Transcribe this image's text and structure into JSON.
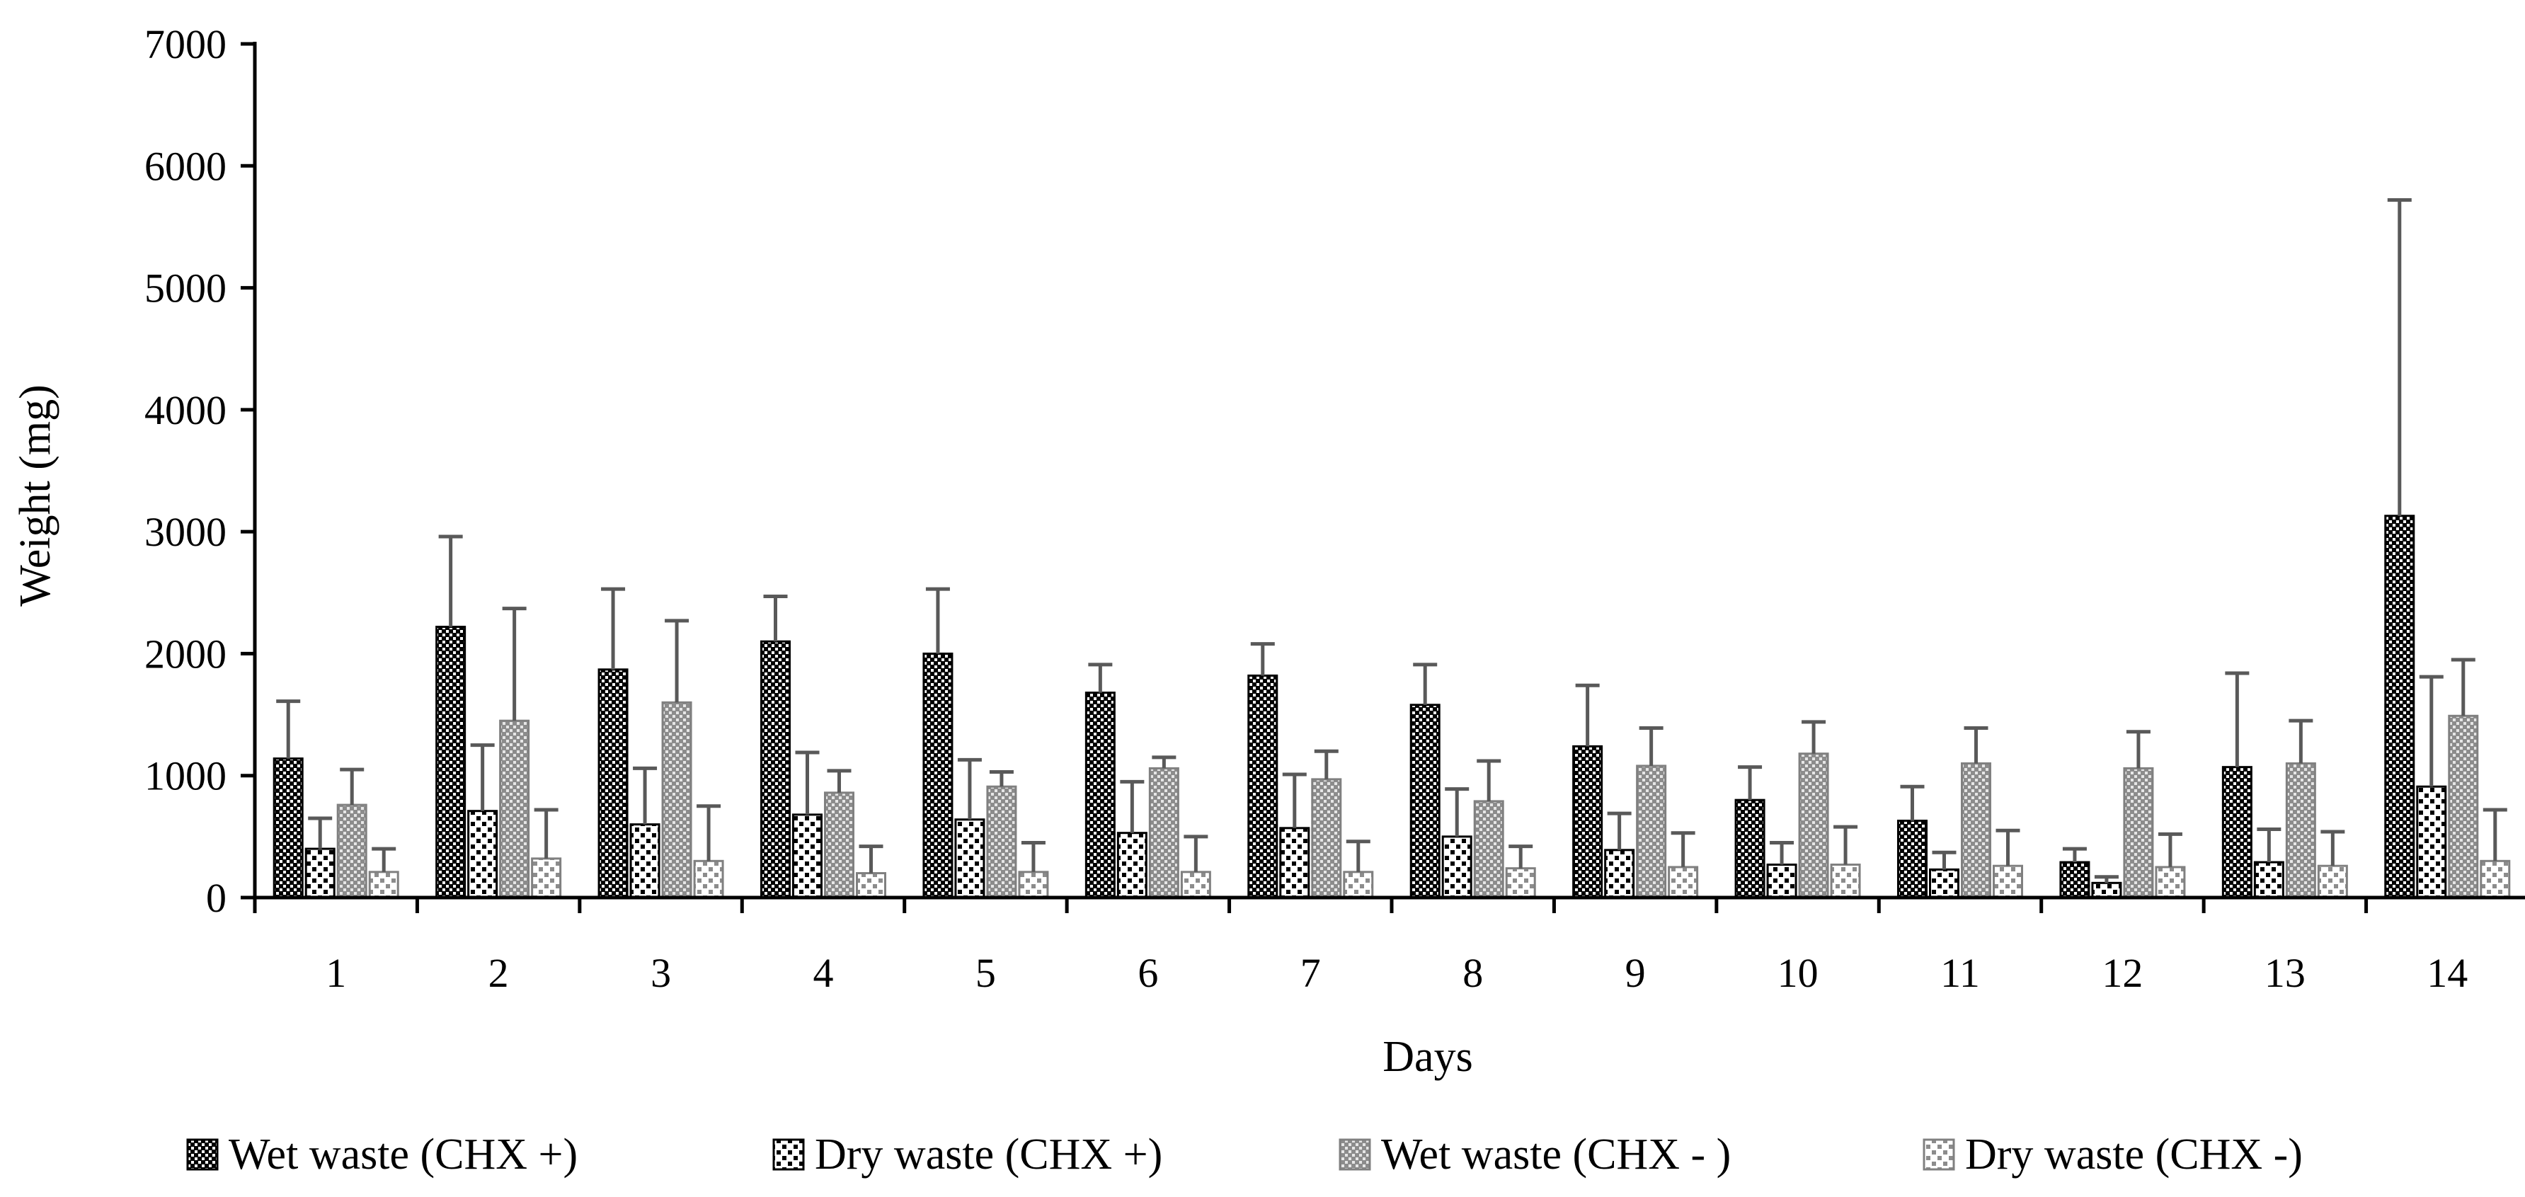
{
  "chart_data": {
    "type": "bar",
    "title": "",
    "xlabel": "Days",
    "ylabel": "Weight (mg)",
    "ylim": [
      0,
      7000
    ],
    "yticks": [
      0,
      1000,
      2000,
      3000,
      4000,
      5000,
      6000,
      7000
    ],
    "grid": false,
    "legend_position": "bottom",
    "categories": [
      "1",
      "2",
      "3",
      "4",
      "5",
      "6",
      "7",
      "8",
      "9",
      "10",
      "11",
      "12",
      "13",
      "14"
    ],
    "series": [
      {
        "name": "Wet waste (CHX +)",
        "pattern": "checker-dark",
        "values": [
          1140,
          2220,
          1870,
          2100,
          2000,
          1680,
          1820,
          1580,
          1240,
          800,
          630,
          290,
          1070,
          3130
        ],
        "errors": [
          470,
          740,
          660,
          370,
          530,
          230,
          260,
          330,
          500,
          270,
          280,
          110,
          770,
          2590
        ]
      },
      {
        "name": "Dry waste (CHX +)",
        "pattern": "dots-dark",
        "values": [
          400,
          710,
          600,
          680,
          640,
          530,
          570,
          500,
          390,
          270,
          230,
          120,
          290,
          910
        ],
        "errors": [
          250,
          540,
          460,
          510,
          490,
          420,
          440,
          390,
          300,
          180,
          140,
          50,
          270,
          900
        ]
      },
      {
        "name": "Wet waste (CHX - )",
        "pattern": "checker-light",
        "values": [
          760,
          1450,
          1600,
          860,
          910,
          1060,
          970,
          790,
          1080,
          1180,
          1100,
          1060,
          1100,
          1490
        ],
        "errors": [
          290,
          920,
          670,
          180,
          120,
          90,
          230,
          330,
          310,
          260,
          290,
          300,
          350,
          460
        ]
      },
      {
        "name": "Dry waste (CHX -)",
        "pattern": "dots-light",
        "values": [
          210,
          320,
          300,
          200,
          210,
          210,
          210,
          240,
          250,
          270,
          260,
          250,
          260,
          300
        ],
        "errors": [
          190,
          400,
          450,
          220,
          240,
          290,
          250,
          180,
          280,
          310,
          290,
          270,
          280,
          420
        ]
      }
    ]
  },
  "colors": {
    "axis": "#000000",
    "error_bar": "#595959",
    "bar_outline_dark": "#000000",
    "bar_outline_light": "#808080"
  }
}
